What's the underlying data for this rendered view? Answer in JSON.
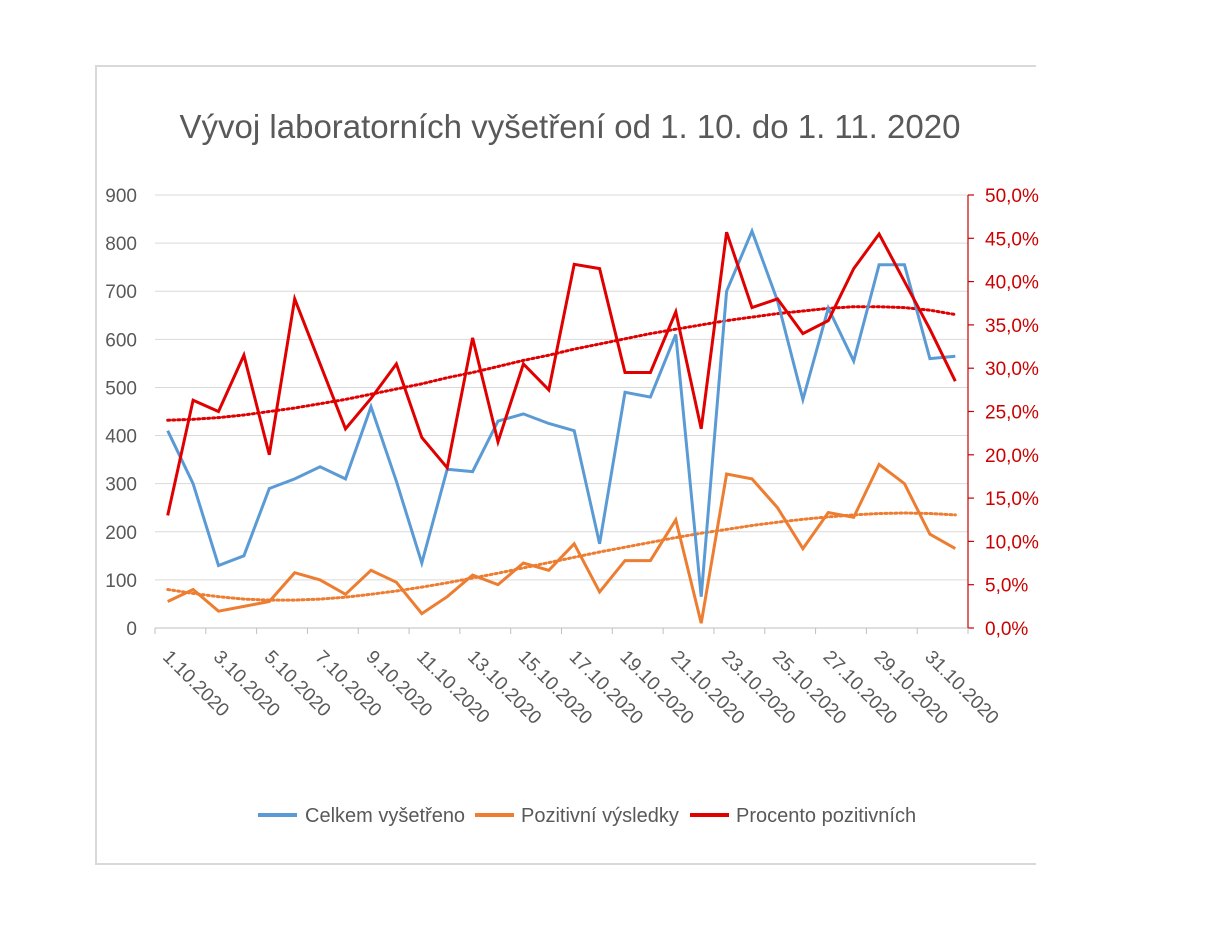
{
  "chart_data": {
    "type": "line",
    "title": "Vývoj laboratorních vyšetření od 1. 10. do 1. 11. 2020",
    "x": [
      "1.10.2020",
      "2.10.2020",
      "3.10.2020",
      "4.10.2020",
      "5.10.2020",
      "6.10.2020",
      "7.10.2020",
      "8.10.2020",
      "9.10.2020",
      "10.10.2020",
      "11.10.2020",
      "12.10.2020",
      "13.10.2020",
      "14.10.2020",
      "15.10.2020",
      "16.10.2020",
      "17.10.2020",
      "18.10.2020",
      "19.10.2020",
      "20.10.2020",
      "21.10.2020",
      "22.10.2020",
      "23.10.2020",
      "24.10.2020",
      "25.10.2020",
      "26.10.2020",
      "27.10.2020",
      "28.10.2020",
      "29.10.2020",
      "30.10.2020",
      "31.10.2020",
      "1.11.2020"
    ],
    "x_tick_labels": [
      "1.10.2020",
      "3.10.2020",
      "5.10.2020",
      "7.10.2020",
      "9.10.2020",
      "11.10.2020",
      "13.10.2020",
      "15.10.2020",
      "17.10.2020",
      "19.10.2020",
      "21.10.2020",
      "23.10.2020",
      "25.10.2020",
      "27.10.2020",
      "29.10.2020",
      "31.10.2020"
    ],
    "y_left": {
      "ylim": [
        0,
        900
      ],
      "ticks": [
        "0",
        "100",
        "200",
        "300",
        "400",
        "500",
        "600",
        "700",
        "800",
        "900"
      ]
    },
    "y_right": {
      "ylim": [
        0,
        50
      ],
      "unit": "%",
      "ticks": [
        "0,0%",
        "5,0%",
        "10,0%",
        "15,0%",
        "20,0%",
        "25,0%",
        "30,0%",
        "35,0%",
        "40,0%",
        "45,0%",
        "50,0%"
      ]
    },
    "grid": "horizontal",
    "legend_position": "bottom",
    "series": [
      {
        "name": "Celkem vyšetřeno",
        "axis": "left",
        "color": "#5b9bd5",
        "values": [
          410,
          300,
          130,
          150,
          290,
          310,
          335,
          310,
          460,
          305,
          135,
          330,
          325,
          430,
          445,
          425,
          410,
          175,
          490,
          480,
          610,
          65,
          700,
          825,
          680,
          475,
          665,
          555,
          755,
          755,
          560,
          565
        ]
      },
      {
        "name": "Pozitivní výsledky",
        "axis": "left",
        "color": "#ed7d31",
        "values": [
          55,
          80,
          35,
          45,
          55,
          115,
          100,
          70,
          120,
          95,
          30,
          65,
          110,
          90,
          135,
          120,
          175,
          75,
          140,
          140,
          225,
          10,
          320,
          310,
          250,
          165,
          240,
          230,
          340,
          300,
          195,
          165
        ]
      },
      {
        "name": "Procento pozitivních",
        "axis": "right",
        "color": "#e00000",
        "values": [
          13.0,
          26.3,
          25.0,
          31.5,
          20.0,
          38.0,
          30.5,
          23.0,
          26.5,
          30.5,
          22.0,
          18.5,
          33.5,
          21.5,
          30.5,
          27.5,
          42.0,
          41.5,
          29.5,
          29.5,
          36.5,
          23.0,
          45.7,
          37.0,
          38.0,
          34.0,
          35.5,
          41.5,
          45.5,
          40.0,
          34.5,
          28.5
        ]
      }
    ],
    "trendlines": [
      {
        "series": "Pozitivní výsledky",
        "axis": "left",
        "style": "dotted",
        "color": "#ed7d31",
        "values": [
          80,
          72,
          65,
          60,
          58,
          58,
          60,
          64,
          70,
          77,
          85,
          94,
          104,
          114,
          125,
          136,
          147,
          158,
          168,
          178,
          188,
          197,
          205,
          213,
          220,
          226,
          231,
          235,
          238,
          239,
          238,
          235
        ]
      },
      {
        "series": "Procento pozitivních",
        "axis": "right",
        "style": "dotted",
        "color": "#e00000",
        "values": [
          24.0,
          24.1,
          24.3,
          24.6,
          25.0,
          25.4,
          25.9,
          26.4,
          27.0,
          27.6,
          28.2,
          28.9,
          29.5,
          30.2,
          30.9,
          31.5,
          32.2,
          32.8,
          33.4,
          34.0,
          34.5,
          35.0,
          35.5,
          35.9,
          36.3,
          36.6,
          36.9,
          37.1,
          37.1,
          37.0,
          36.7,
          36.2
        ]
      }
    ]
  }
}
